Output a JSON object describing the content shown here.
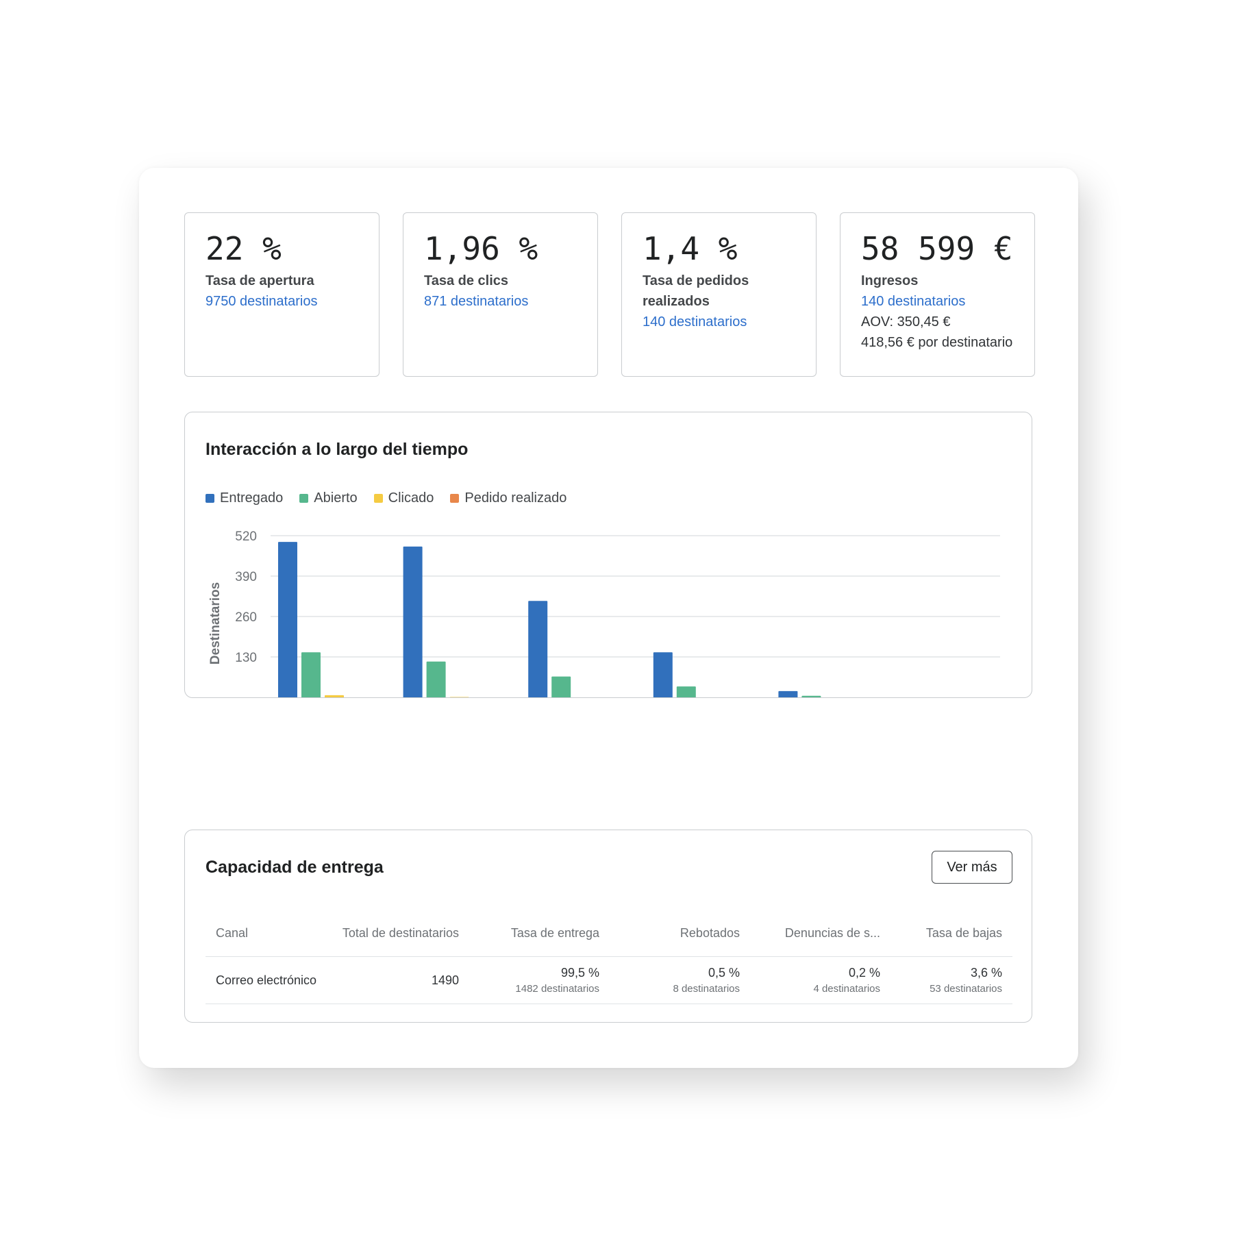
{
  "metrics": [
    {
      "value": "22 %",
      "label": "Tasa de apertura",
      "link": "9750 destinatarios"
    },
    {
      "value": "1,96 %",
      "label": "Tasa de clics",
      "link": "871 destinatarios"
    },
    {
      "value": "1,4 %",
      "label": "Tasa de pedidos realizados",
      "link": "140 destinatarios"
    },
    {
      "value": "58 599 €",
      "label": "Ingresos",
      "link": "140 destinatarios",
      "extra1": "AOV: 350,45 €",
      "extra2": "418,56 € por destinatario"
    }
  ],
  "chart": {
    "title": "Interacción a lo largo del tiempo"
  },
  "chart_data": {
    "type": "bar",
    "ylabel": "Destinatarios",
    "xlabel": "",
    "ylim": [
      0,
      520
    ],
    "yticks": [
      130,
      260,
      390,
      520
    ],
    "categories": [
      "",
      "",
      "",
      "",
      ""
    ],
    "grid": true,
    "legend_position": "top-left",
    "series": [
      {
        "name": "Entregado",
        "color": "#3170bc",
        "values": [
          500,
          485,
          310,
          145,
          20
        ]
      },
      {
        "name": "Abierto",
        "color": "#56b78d",
        "values": [
          145,
          115,
          67,
          35,
          5
        ]
      },
      {
        "name": "Clicado",
        "color": "#f5cb42",
        "values": [
          7,
          1,
          0,
          0,
          0
        ]
      },
      {
        "name": "Pedido realizado",
        "color": "#e8874a",
        "values": [
          0,
          0,
          0,
          0,
          0
        ]
      }
    ]
  },
  "deliverability": {
    "title": "Capacidad de entrega",
    "button": "Ver más",
    "headers": [
      "Canal",
      "Total de destinatarios",
      "Tasa de entrega",
      "Rebotados",
      "Denuncias de s...",
      "Tasa de bajas"
    ],
    "row": {
      "channel": "Correo electrónico",
      "total": "1490",
      "cells": [
        {
          "value": "99,5 %",
          "sub": "1482 destinatarios"
        },
        {
          "value": "0,5 %",
          "sub": "8 destinatarios"
        },
        {
          "value": "0,2 %",
          "sub": "4 destinatarios"
        },
        {
          "value": "3,6 %",
          "sub": "53 destinatarios"
        }
      ]
    }
  }
}
